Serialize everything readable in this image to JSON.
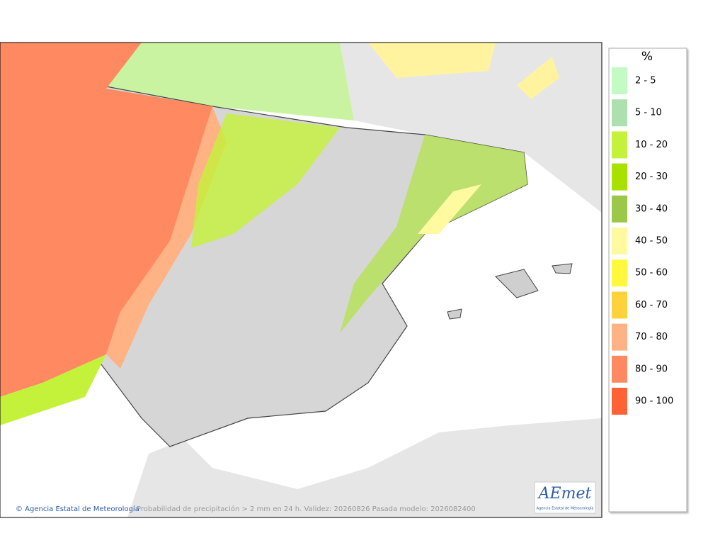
{
  "legend": {
    "title": "%",
    "items": [
      {
        "label": "2 - 5",
        "color": "#c2fbc4"
      },
      {
        "label": "5 - 10",
        "color": "#ace0ae"
      },
      {
        "label": "10 - 20",
        "color": "#c4f23a"
      },
      {
        "label": "20 - 30",
        "color": "#a8e000"
      },
      {
        "label": "30 - 40",
        "color": "#9cc84a"
      },
      {
        "label": "40 - 50",
        "color": "#fff9a0"
      },
      {
        "label": "50 - 60",
        "color": "#fff83c"
      },
      {
        "label": "60 - 70",
        "color": "#ffd23c"
      },
      {
        "label": "70 - 80",
        "color": "#ffb284"
      },
      {
        "label": "80 - 90",
        "color": "#ff8a62"
      },
      {
        "label": "90 - 100",
        "color": "#ff6234"
      }
    ]
  },
  "footer": {
    "credit": "© Agencia Estatal de Meteorología",
    "caption": "Probabilidad de precipitación > 2 mm en 24 h. Validez: 20260826 Pasada modelo: 2026082400"
  },
  "logo": {
    "name": "AEmet",
    "subtitle": "Agencia Estatal de Meteorología"
  }
}
